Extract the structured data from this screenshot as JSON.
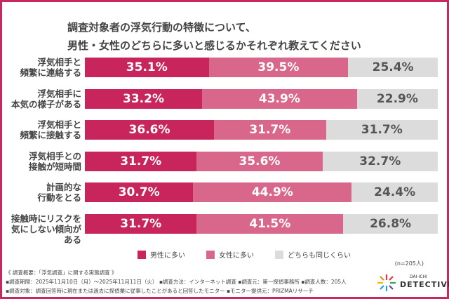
{
  "chart_data": {
    "type": "bar",
    "stacked": true,
    "orientation": "horizontal",
    "title": [
      "調査対象者の浮気行動の特徴について、",
      "男性・女性のどちらに多いと感じるかそれぞれ教えてください"
    ],
    "categories": [
      [
        "浮気相手と",
        "頻繁に連絡する"
      ],
      [
        "浮気相手に",
        "本気の様子がある"
      ],
      [
        "浮気相手と",
        "頻繁に接触する"
      ],
      [
        "浮気相手との",
        "接触が短時間"
      ],
      [
        "計画的な",
        "行動をとる"
      ],
      [
        "接触時にリスクを",
        "気にしない傾向がある"
      ]
    ],
    "series": [
      {
        "name": "男性に多い",
        "color": "#c7255b",
        "text_color": "#ffffff",
        "values": [
          35.1,
          33.2,
          36.6,
          31.7,
          30.7,
          31.7
        ]
      },
      {
        "name": "女性に多い",
        "color": "#d9668b",
        "text_color": "#ffffff",
        "values": [
          39.5,
          43.9,
          31.7,
          35.6,
          44.9,
          41.5
        ]
      },
      {
        "name": "どちらも同じくらい",
        "color": "#dcdcdc",
        "text_color": "#555555",
        "values": [
          25.4,
          22.9,
          31.7,
          32.7,
          24.4,
          26.8
        ]
      }
    ],
    "unit": "%",
    "xlim": [
      0,
      100
    ],
    "legend_position": "bottom",
    "sample": "(n=205人)"
  },
  "notes": [
    "《 調査概要：「浮気調査」に関する実態調査 》",
    "▪調査期間：2025年11月10日（月）～2025年11月11日（火） ▪調査方法：インターネット調査 ▪調査元：第一探偵事務所 ▪調査人数：205人",
    "▪調査対象：調査回答時に現在または過去に探偵業に従事したことがあると回答したモニター ▪モニター提供元：PRIZMAリサーチ"
  ],
  "logo": {
    "top": "DAI-ICHI",
    "bottom": "DETECTIVE"
  },
  "colors": {
    "border": "#c8285e"
  }
}
